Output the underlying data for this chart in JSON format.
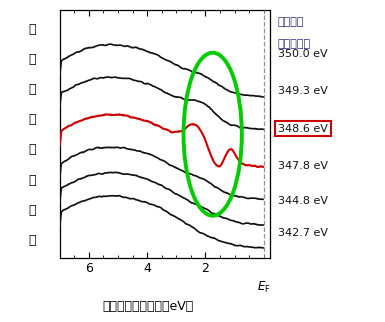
{
  "xlabel": "電子のエネルギー（eV）",
  "ylabel_lines": [
    "強",
    "度",
    "（",
    "任",
    "意",
    "目",
    "盛",
    "）"
  ],
  "legend_title1": "入射光の",
  "legend_title2": "エネルギー",
  "energies": [
    "350.0 eV",
    "349.3 eV",
    "348.6 eV",
    "347.8 eV",
    "344.8 eV",
    "342.7 eV"
  ],
  "red_index": 2,
  "ef_label": "$E_{\\mathrm{F}}$",
  "bg_color": "#ffffff",
  "text_color": "#2a2a80",
  "red_color": "#cc0000",
  "black_color": "#111111",
  "green_color": "#00cc00",
  "red_box_color": "#cc0000",
  "offsets": [
    1.3,
    1.02,
    0.7,
    0.42,
    0.2,
    0.0
  ],
  "xlim": [
    7.0,
    -0.2
  ],
  "ylim": [
    -0.08,
    2.05
  ]
}
